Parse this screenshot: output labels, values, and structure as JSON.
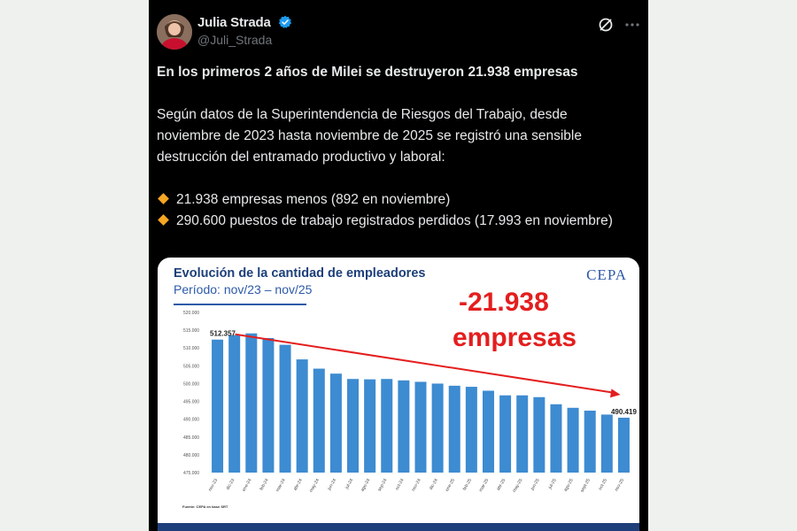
{
  "author": {
    "name": "Julia Strada",
    "handle": "@Juli_Strada"
  },
  "icons": {
    "verified": "verified-badge-icon",
    "grok": "grok-icon",
    "more": "more-icon",
    "bullet": "orange-diamond-icon"
  },
  "tweet": {
    "headline": "En los primeros 2 años de Milei se destruyeron 21.938 empresas",
    "paragraph": "Según datos de la Superintendencia de Riesgos del Trabajo, desde noviembre de 2023 hasta noviembre de 2025 se registró una sensible destrucción del entramado productivo y laboral:",
    "bullets": [
      "21.938 empresas menos (892 en noviembre)",
      "290.600 puestos de trabajo registrados perdidos (17.993 en noviembre)"
    ]
  },
  "card": {
    "title": "Evolución de la cantidad de empleadores",
    "subtitle": "Período: nov/23 – nov/25",
    "logo": "CEPA",
    "highlight_value": "-21.938",
    "highlight_label": "empresas",
    "source": "Fuente: CEPA en base SRT"
  },
  "chart_data": {
    "type": "bar",
    "title": "Evolución de la cantidad de empleadores",
    "xlabel": "",
    "ylabel": "",
    "ylim": [
      475000,
      520000
    ],
    "yticks": [
      "475.000",
      "480.000",
      "485.000",
      "490.000",
      "495.000",
      "500.000",
      "505.000",
      "510.000",
      "515.000",
      "520.000"
    ],
    "ytick_values": [
      475000,
      480000,
      485000,
      490000,
      495000,
      500000,
      505000,
      510000,
      515000,
      520000
    ],
    "categories": [
      "nov-23",
      "dic-23",
      "ene-24",
      "feb-24",
      "mar-24",
      "abr-24",
      "may-24",
      "jun-24",
      "jul-24",
      "ago-24",
      "sep-24",
      "oct-24",
      "nov-24",
      "dic-24",
      "ene-25",
      "feb-25",
      "mar-25",
      "abr-25",
      "may-25",
      "jun-25",
      "jul-25",
      "ago-25",
      "sept-25",
      "oct-25",
      "nov-25"
    ],
    "values": [
      512357,
      513600,
      514100,
      512800,
      510900,
      506800,
      504200,
      502800,
      501300,
      501200,
      501300,
      500900,
      500500,
      500000,
      499400,
      499100,
      498000,
      496700,
      496700,
      496200,
      494200,
      493200,
      492400,
      491300,
      490419
    ],
    "data_labels": [
      {
        "index": 0,
        "text": "512.357"
      },
      {
        "index": 24,
        "text": "490.419"
      }
    ],
    "bar_color": "#3d8bd1",
    "arrow_color": "#e41e1e",
    "grid": false,
    "legend": "none"
  }
}
